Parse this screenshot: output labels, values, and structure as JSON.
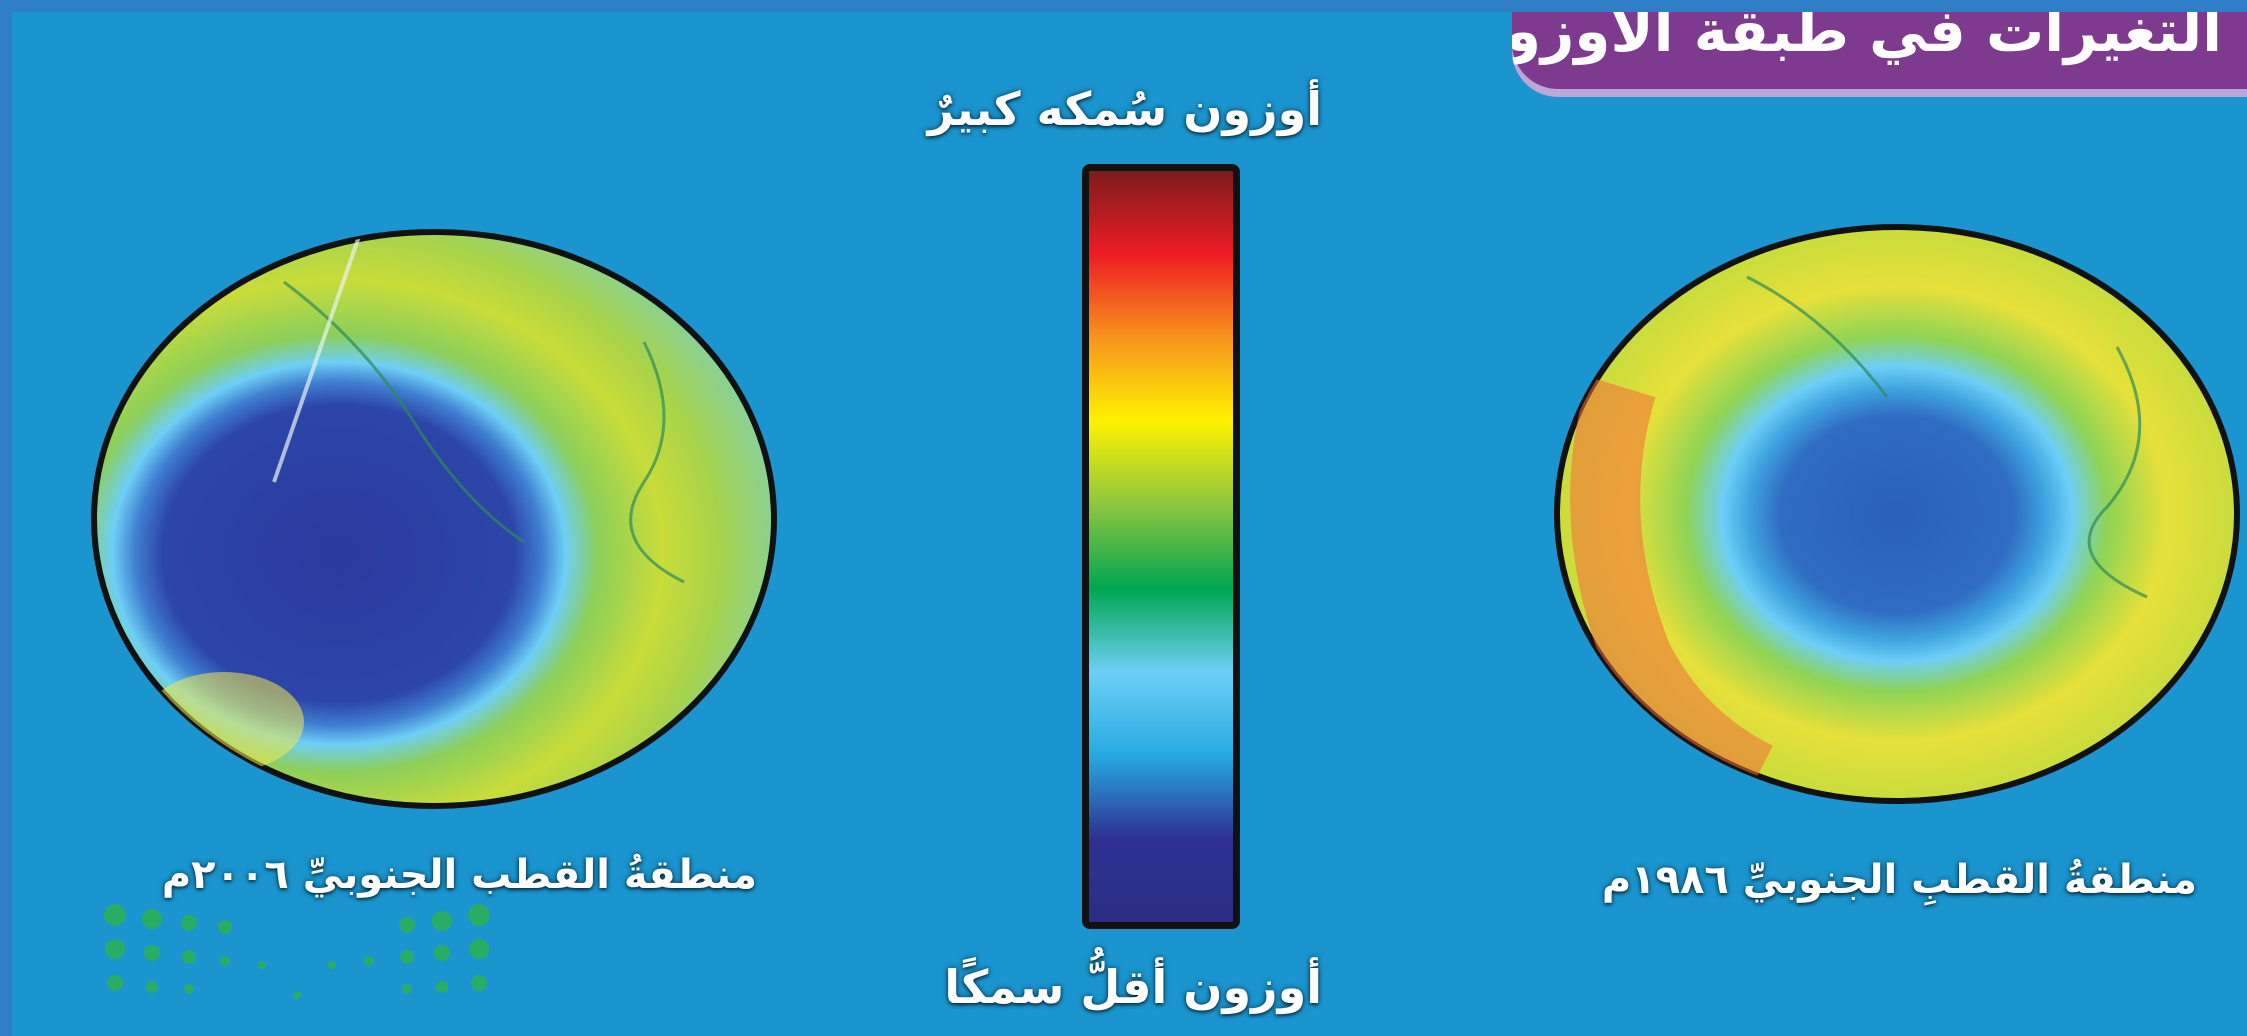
{
  "title": "التغيرات في طبقة الأوزون",
  "scale": {
    "top_label": "أوزون سُمكه كبيرٌ",
    "bottom_label": "أوزون أقلُّ سمكًا",
    "gradient_colors": [
      "#7b1c1e",
      "#ee1c24",
      "#f7941d",
      "#fff200",
      "#8dc63f",
      "#00a651",
      "#6dcff6",
      "#27aae1",
      "#2e3192",
      "#2b2e83"
    ]
  },
  "maps": [
    {
      "caption": "منطقةُ القطب الجنوبيِّ ٢٠٠٦م",
      "ozone_hole_color": "#2b3a9c"
    },
    {
      "caption": "منطقةُ القطبِ الجنوبيِّ ١٩٨٦م",
      "ozone_hole_color": "#2a5fb8"
    }
  ],
  "colors": {
    "background": "#1a95cf",
    "title_background": "#7d3a8e",
    "frame": "#2f7fc8"
  }
}
